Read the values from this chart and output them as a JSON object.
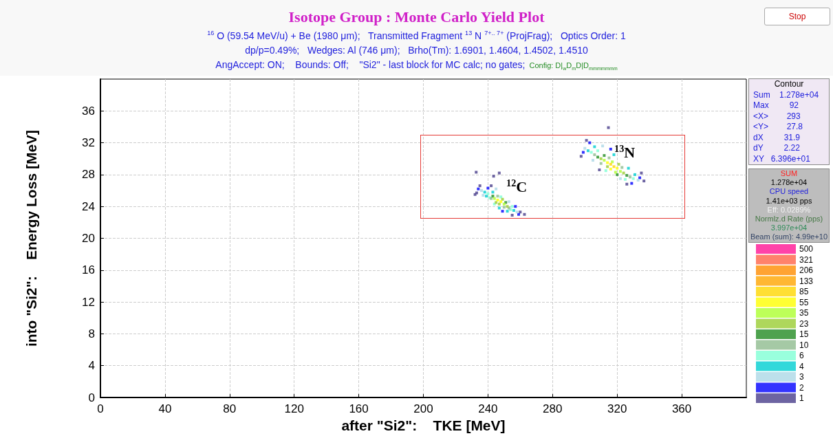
{
  "chart_data": {
    "type": "scatter",
    "title": "Isotope Group : Monte Carlo Yield Plot",
    "subtitle": "$^{16}$ O (59.54 MeV/u) + Be (1980 μm);   Transmitted Fragment $^{13}$ N $^{7+.. 7+}$ (ProjFrag);   Optics Order: 1\ndp/p=0.49%;   Wedges: Al (746 μm);   Brho(Tm): 1.6901, 1.4604, 1.4502, 1.4510\nAngAccept: ON;    Bounds: Off;    \"Si2\" - last block for MC calc; no gates;",
    "xlabel": "after \"Si2\":    TKE [MeV]",
    "ylabel": "into \"Si2\":    Energy Loss [MeV]",
    "xlim": [
      0,
      400
    ],
    "xticks": [
      0,
      40,
      80,
      120,
      160,
      200,
      240,
      280,
      320,
      360
    ],
    "ylim": [
      0,
      40
    ],
    "yticks": [
      0,
      4,
      8,
      12,
      16,
      20,
      24,
      28,
      32,
      36
    ],
    "grid": true,
    "marker": "square",
    "legend": "right",
    "series": [
      {
        "name": "500",
        "color": "#ff1493"
      },
      {
        "name": "321",
        "color": "#ff6347"
      },
      {
        "name": "206",
        "color": "#ff8c00"
      },
      {
        "name": "133",
        "color": "#ffa500"
      },
      {
        "name": "85",
        "color": "#ffd700",
        "x": [
          318,
          316
        ],
        "values": [
          29.0,
          29.3
        ]
      },
      {
        "name": "55",
        "color": "#ffff00",
        "x": [
          246,
          248,
          314,
          320,
          316
        ],
        "values": [
          24.8,
          24.6,
          29.5,
          28.8,
          28.7
        ]
      },
      {
        "name": "35",
        "color": "#adff2f",
        "x": [
          250,
          244,
          312,
          322,
          317,
          319
        ],
        "values": [
          24.3,
          25.0,
          29.8,
          28.4,
          29.6,
          28.3
        ]
      },
      {
        "name": "23",
        "color": "#9acd32",
        "x": [
          247,
          249,
          245,
          252,
          310,
          324,
          314,
          321
        ],
        "values": [
          24.3,
          24.9,
          24.5,
          24.0,
          30.0,
          28.2,
          29.0,
          29.3
        ]
      },
      {
        "name": "15",
        "color": "#228b22",
        "x": [
          243,
          251,
          308,
          326,
          312,
          320
        ],
        "values": [
          25.3,
          24.5,
          30.2,
          27.9,
          30.4,
          28.0
        ]
      },
      {
        "name": "10",
        "color": "#8fbc8f",
        "x": [
          253,
          242,
          246,
          250,
          315,
          306,
          328,
          323,
          310
        ],
        "values": [
          23.8,
          25.0,
          25.3,
          23.9,
          30.1,
          30.5,
          27.7,
          28.9,
          29.4
        ]
      },
      {
        "name": "6",
        "color": "#7fffd4",
        "x": [
          240,
          241,
          254,
          255,
          248,
          244,
          304,
          330,
          308,
          325,
          313
        ],
        "values": [
          25.6,
          25.1,
          23.6,
          24.0,
          25.2,
          24.3,
          30.8,
          27.5,
          31.0,
          27.4,
          28.5
        ]
      },
      {
        "name": "4",
        "color": "#00ced1",
        "x": [
          238,
          239,
          256,
          252,
          247,
          243,
          302,
          331,
          306,
          327,
          318
        ],
        "values": [
          25.8,
          25.3,
          23.5,
          23.4,
          23.8,
          25.8,
          31.0,
          28.0,
          31.5,
          28.8,
          30.5
        ]
      },
      {
        "name": "3",
        "color": "#add8e6",
        "x": [
          236,
          258,
          237,
          245,
          253,
          300,
          333,
          305,
          311,
          322
        ],
        "values": [
          26.0,
          23.3,
          25.4,
          26.2,
          24.6,
          31.3,
          27.3,
          29.8,
          31.6,
          27.5
        ]
      },
      {
        "name": "2",
        "color": "#0000ff",
        "x": [
          234,
          240,
          257,
          259,
          249,
          299,
          334,
          303,
          316,
          329
        ],
        "values": [
          26.2,
          26.3,
          24.0,
          23.0,
          23.4,
          30.8,
          27.6,
          32.0,
          31.2,
          26.9
        ]
      },
      {
        "name": "1",
        "color": "#483d8b",
        "x": [
          233,
          235,
          242,
          260,
          255,
          262.6,
          232.7,
          243.5,
          247,
          232,
          297.7,
          336.6,
          314.6,
          301,
          335,
          309,
          326
        ],
        "values": [
          25.7,
          26.6,
          26.6,
          23.3,
          22.9,
          23.0,
          28.3,
          27.8,
          28.2,
          25.5,
          30.3,
          27.2,
          33.9,
          32.3,
          28.2,
          28.6,
          26.8
        ]
      }
    ],
    "annotations": [
      "$^{12}$C",
      "$^{13}$N",
      "Stop",
      "Config: D|$_{w}$D$_{m}$D|D$_{mmmmmmm}$",
      "Contour",
      "Sum    1.278e+04",
      "Max         92",
      "<X>        293",
      "<Y>        27.8",
      "dX         31.9",
      "dY         2.22",
      "XY   6.396e+01",
      "SUM",
      "1.278e+04",
      "CPU speed",
      "1.41e+03 pps",
      "Eff:  0.0289%",
      "Normlz.d Rate (pps)",
      "3.997e+04",
      "Beam (sum): 4.99e+10"
    ]
  }
}
